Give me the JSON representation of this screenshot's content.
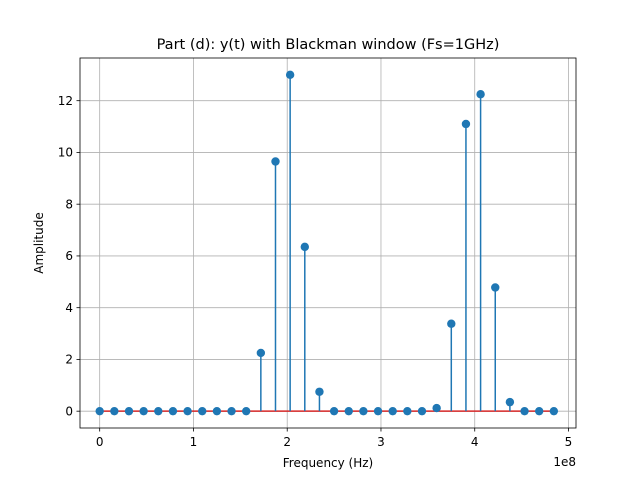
{
  "chart_data": {
    "type": "stem",
    "title": "Part (d): y(t) with Blackman window (Fs=1GHz)",
    "xlabel": "Frequency (Hz)",
    "ylabel": "Amplitude",
    "x_offset_label": "1e8",
    "xlim": [
      -21000000,
      508000000
    ],
    "ylim": [
      -0.65,
      13.65
    ],
    "xticks": [
      0,
      100000000,
      200000000,
      300000000,
      400000000,
      500000000
    ],
    "xtick_labels": [
      "0",
      "1",
      "2",
      "3",
      "4",
      "5"
    ],
    "yticks": [
      0,
      2,
      4,
      6,
      8,
      10,
      12
    ],
    "ytick_labels": [
      "0",
      "2",
      "4",
      "6",
      "8",
      "10",
      "12"
    ],
    "grid": true,
    "x": [
      0,
      15625000,
      31250000,
      46875000,
      62500000,
      78125000,
      93750000,
      109375000,
      125000000,
      140625000,
      156250000,
      171875000,
      187500000,
      203125000,
      218750000,
      234375000,
      250000000,
      265625000,
      281250000,
      296875000,
      312500000,
      328125000,
      343750000,
      359375000,
      375000000,
      390625000,
      406250000,
      421875000,
      437500000,
      453125000,
      468750000,
      484375000
    ],
    "values": [
      0,
      0,
      0,
      0,
      0,
      0,
      0,
      0,
      0,
      0,
      0,
      2.25,
      9.65,
      13.0,
      6.35,
      0.75,
      0,
      0,
      0,
      0,
      0,
      0,
      0,
      0.12,
      3.38,
      11.1,
      12.25,
      4.78,
      0.35,
      0,
      0,
      0
    ],
    "colors": {
      "stem": "#1f77b4",
      "baseline": "#d62728",
      "grid": "#b0b0b0"
    }
  }
}
